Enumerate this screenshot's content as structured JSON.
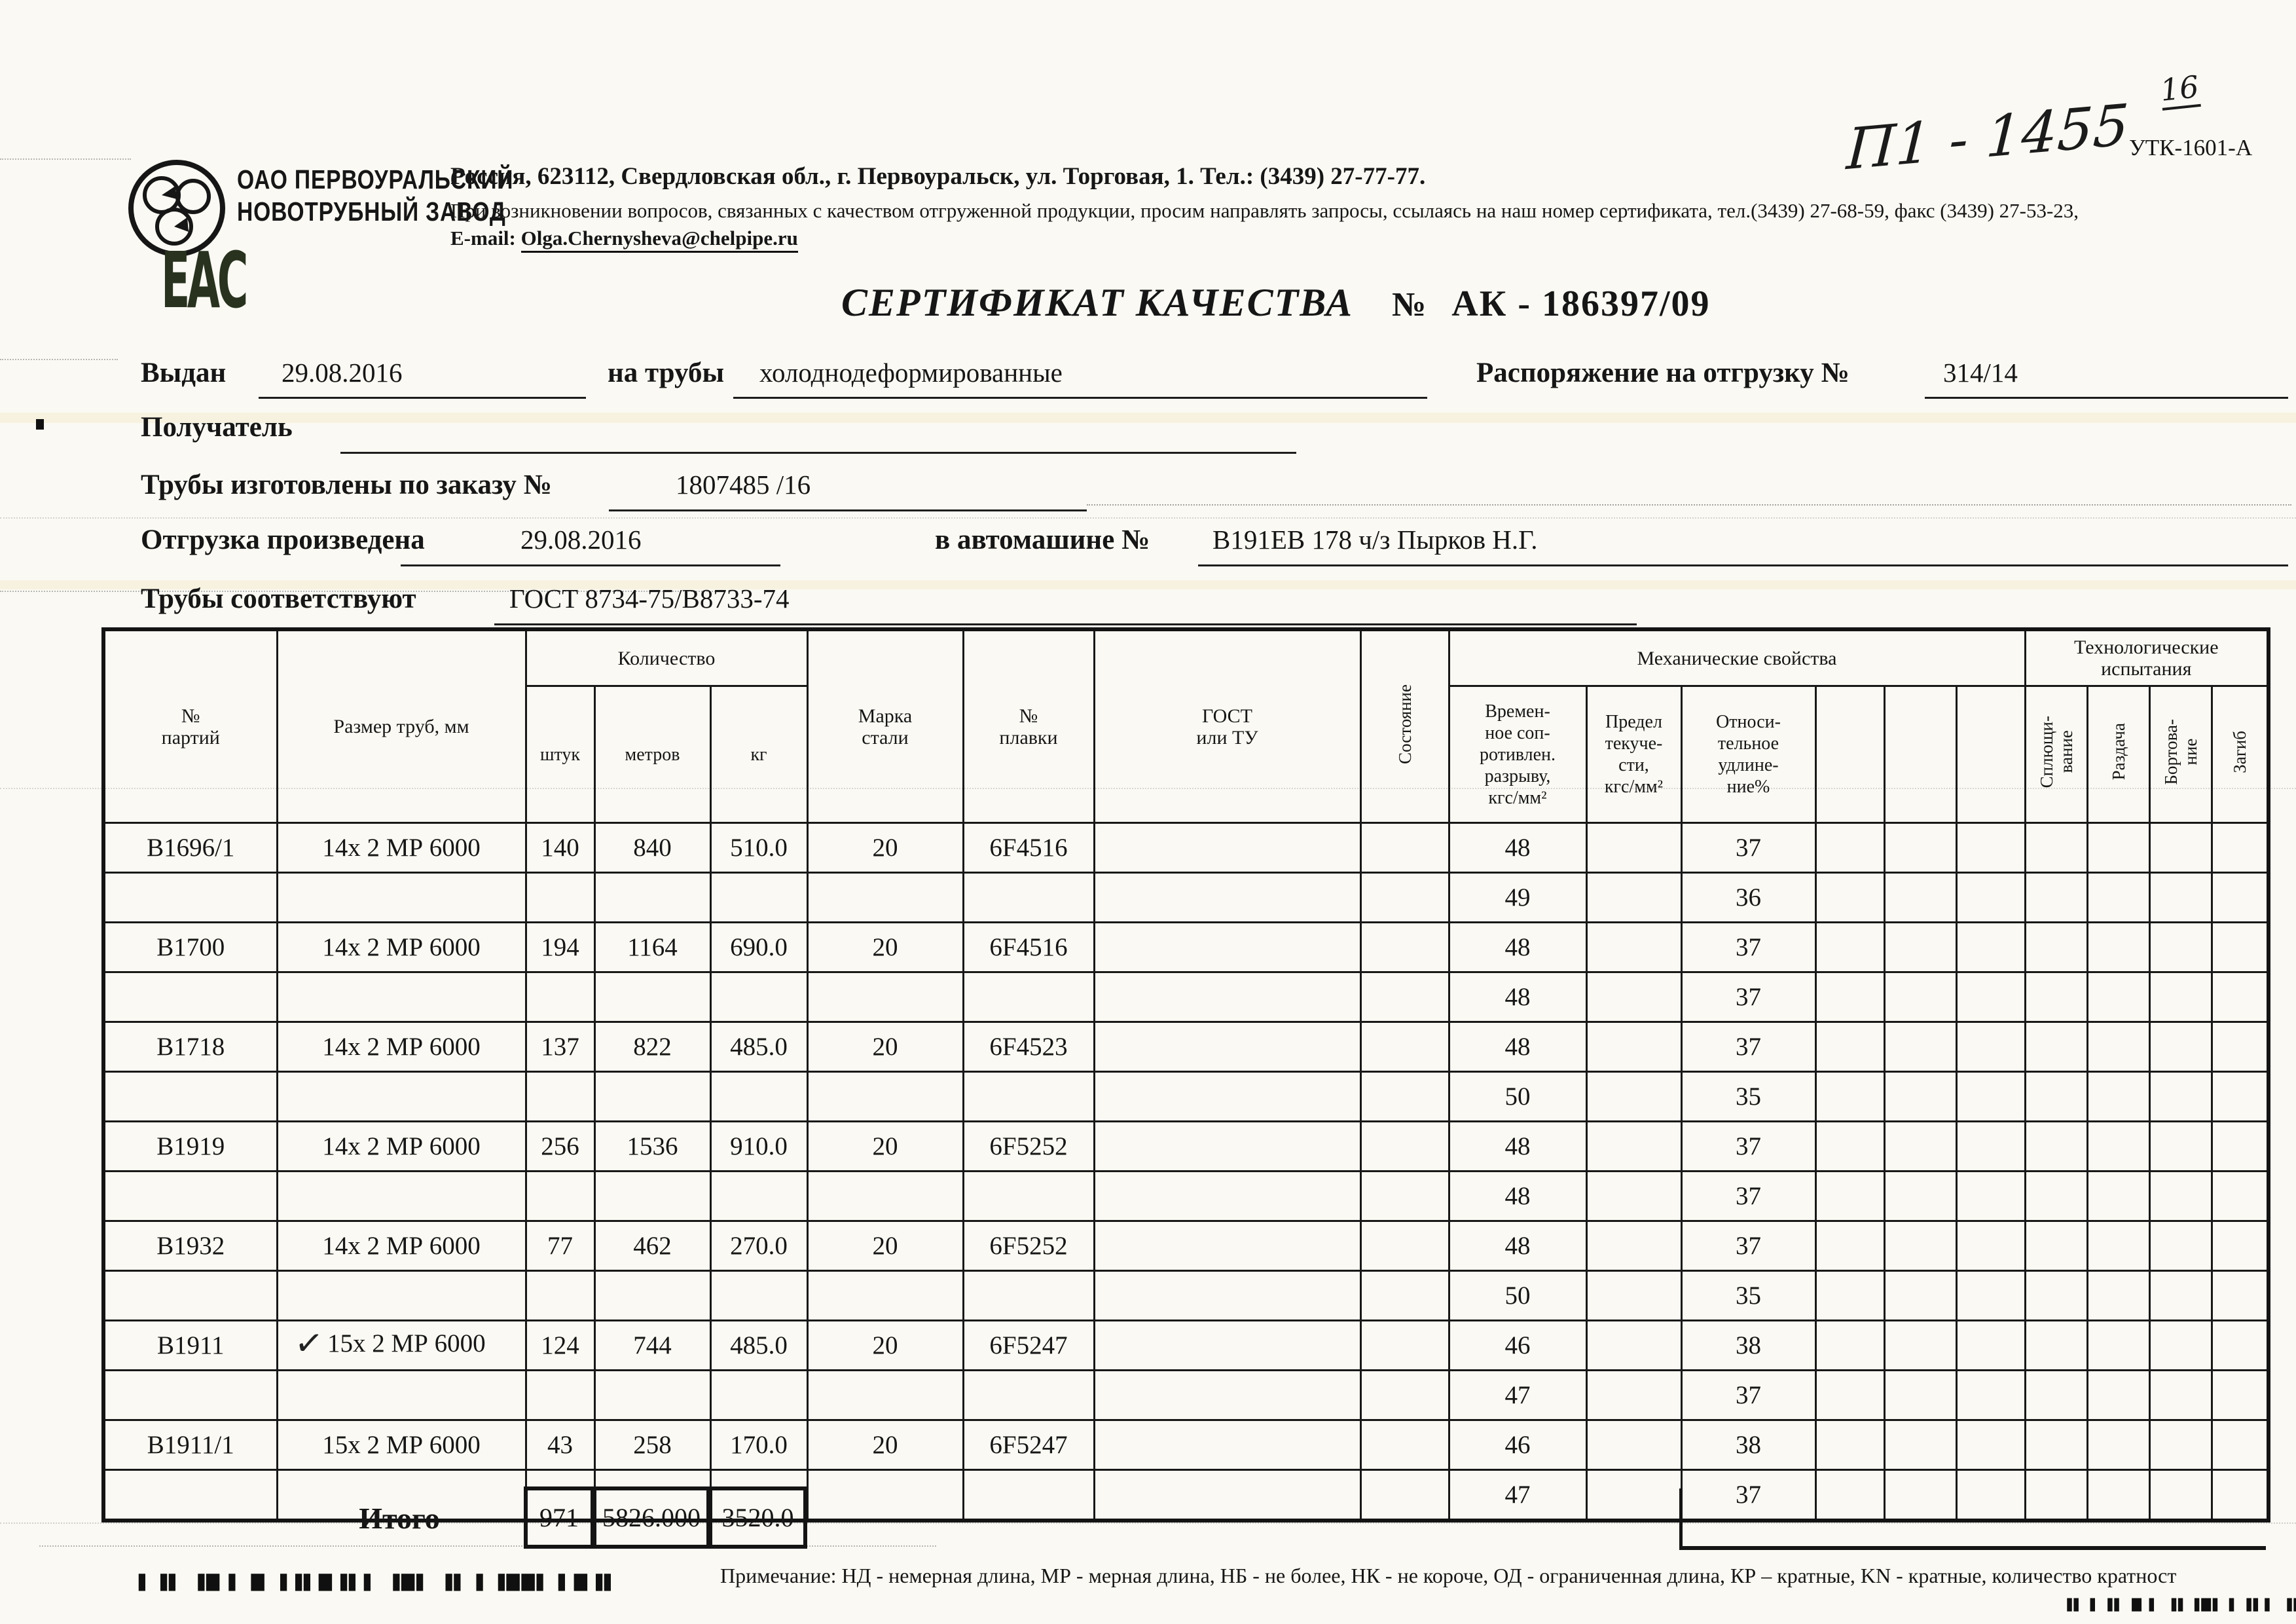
{
  "scan": {
    "handwritten_ref": "П1 - 1455",
    "handwritten_sup": "16",
    "form_code": "УТК-1601-А",
    "left_marks": "▌▐▌ ▐█ ▌ █ ▐▐▌█▐▌▌ ▐█▌ ▐▌ ▌▐██▌▐ █▐▌",
    "right_marks": "▐▌▐ ▐▌ █ ▌ ▐▌▐█▌▐ ▐▌▌ ▐▌ ▌▌█▌▐▌ ▌"
  },
  "header": {
    "company_line1": "ОАО ПЕРВОУРАЛЬСКИЙ",
    "company_line2": "НОВОТРУБНЫЙ  ЗАВОД",
    "eac_mark": "ЕАС",
    "address_line": "Россия, 623112, Свердловская обл., г. Первоуральск, ул. Торговая, 1. Тел.: (3439) 27-77-77.",
    "note_line": "При возникновении вопросов, связанных с качеством отгруженной продукции, просим направлять запросы, ссылаясь на наш номер сертификата, тел.(3439) 27-68-59, факс (3439) 27-53-23,",
    "email_label": "E-mail:",
    "email_value": "Olga.Chernysheva@chelpipe.ru"
  },
  "title": {
    "name": "СЕРТИФИКАТ КАЧЕСТВА",
    "no_sign": "№",
    "number": "АК -  186397/09"
  },
  "form": {
    "issued_label": "Выдан",
    "issued_value": "29.08.2016",
    "pipes_label": "на трубы",
    "pipes_value": "холоднодеформированные",
    "order_label": "Распоряжение на отгрузку №",
    "order_value": "314/14",
    "receiver_label": "Получатель",
    "made_label": "Трубы изготовлены по заказу №",
    "made_value": "1807485   /16",
    "shipped_label": "Отгрузка произведена",
    "shipped_value": "29.08.2016",
    "truck_label": "в автомашине №",
    "truck_value": "В191ЕВ 178 ч/з Пырков Н.Г.",
    "standard_label": "Трубы соответствуют",
    "standard_value": "ГОСТ 8734-75/В8733-74"
  },
  "table": {
    "groups": {
      "quantity": "Количество",
      "mech": "Механические свойства",
      "tech": "Технологические\nиспытания"
    },
    "columns": {
      "batch": "№\nпартий",
      "size": "Размер труб, мм",
      "pcs": "штук",
      "meters": "метров",
      "kg": "кг",
      "steel": "Марка\nстали",
      "heat": "№\nплавки",
      "gost": "ГОСТ\nили ТУ",
      "state": "Состояние",
      "tensile": "Времен-\nное соп-\nротивлен.\nразрыву,\nкгс/мм²",
      "yield": "Предел\nтекуче-\nсти,\nкгс/мм²",
      "elong": "Относи-\nтельное\nудлине-\nние%",
      "flat": "Сплющи-\nвание",
      "exp": "Раздача",
      "flange": "Бортова-\nние",
      "bend": "Загиб"
    },
    "rows": [
      {
        "batch": "В1696/1",
        "size": "14х 2 МР 6000",
        "pcs": "140",
        "meters": "840",
        "kg": "510.0",
        "steel": "20",
        "heat": "6F4516",
        "tensile": "48",
        "elong": "37"
      },
      {
        "tensile": "49",
        "elong": "36"
      },
      {
        "batch": "В1700",
        "size": "14х 2 МР 6000",
        "pcs": "194",
        "meters": "1164",
        "kg": "690.0",
        "steel": "20",
        "heat": "6F4516",
        "tensile": "48",
        "elong": "37"
      },
      {
        "tensile": "48",
        "elong": "37"
      },
      {
        "batch": "В1718",
        "size": "14х 2 МР 6000",
        "pcs": "137",
        "meters": "822",
        "kg": "485.0",
        "steel": "20",
        "heat": "6F4523",
        "tensile": "48",
        "elong": "37"
      },
      {
        "tensile": "50",
        "elong": "35"
      },
      {
        "batch": "В1919",
        "size": "14х 2 МР 6000",
        "pcs": "256",
        "meters": "1536",
        "kg": "910.0",
        "steel": "20",
        "heat": "6F5252",
        "tensile": "48",
        "elong": "37"
      },
      {
        "tensile": "48",
        "elong": "37"
      },
      {
        "batch": "В1932",
        "size": "14х 2 МР 6000",
        "pcs": "77",
        "meters": "462",
        "kg": "270.0",
        "steel": "20",
        "heat": "6F5252",
        "tensile": "48",
        "elong": "37"
      },
      {
        "tensile": "50",
        "elong": "35"
      },
      {
        "batch": "В1911",
        "size": "15х 2 МР 6000",
        "check": true,
        "pcs": "124",
        "meters": "744",
        "kg": "485.0",
        "steel": "20",
        "heat": "6F5247",
        "tensile": "46",
        "elong": "38"
      },
      {
        "tensile": "47",
        "elong": "37"
      },
      {
        "batch": "В1911/1",
        "size": "15х 2 МР 6000",
        "pcs": "43",
        "meters": "258",
        "kg": "170.0",
        "steel": "20",
        "heat": "6F5247",
        "tensile": "46",
        "elong": "38"
      },
      {
        "tensile": "47",
        "elong": "37"
      }
    ],
    "totals": {
      "label": "Итого",
      "pcs": "971",
      "meters": "5826.000",
      "kg": "3520.0"
    }
  },
  "footnote": "Примечание: НД - немерная длина, МР - мерная длина, НБ - не более, НК - не короче, ОД - ограниченная длина, КР – кратные, KN - кратные, количество кратност"
}
